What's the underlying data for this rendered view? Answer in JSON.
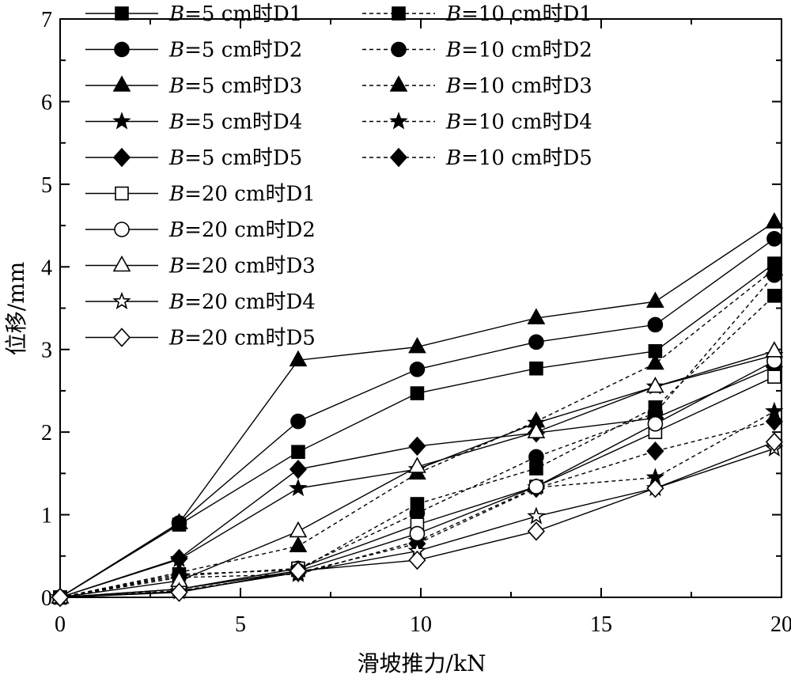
{
  "chart_data": {
    "type": "line",
    "title": "",
    "xlabel": "滑坡推力/kN",
    "ylabel": "位移/mm",
    "xlim": [
      0,
      20
    ],
    "ylim": [
      0,
      7
    ],
    "x_ticks": [
      "0",
      "5",
      "10",
      "15",
      "20"
    ],
    "y_ticks": [
      "0",
      "1",
      "2",
      "3",
      "4",
      "5",
      "6",
      "7"
    ],
    "grid": false,
    "legend_position": "top-left",
    "x": [
      0,
      3.3,
      6.6,
      9.9,
      13.2,
      16.5,
      19.8
    ],
    "series": [
      {
        "name": "B=5 cm时D1",
        "prefix": "B",
        "suffix": "=5 cm时D1",
        "marker": "square",
        "filled": true,
        "dashed": false,
        "values": [
          0,
          0.88,
          1.76,
          2.47,
          2.77,
          2.98,
          4.04
        ]
      },
      {
        "name": "B=5 cm时D2",
        "prefix": "B",
        "suffix": "=5 cm时D2",
        "marker": "circle",
        "filled": true,
        "dashed": false,
        "values": [
          0,
          0.9,
          2.13,
          2.76,
          3.09,
          3.3,
          4.34
        ]
      },
      {
        "name": "B=5 cm时D3",
        "prefix": "B",
        "suffix": "=5 cm时D3",
        "marker": "triangle",
        "filled": true,
        "dashed": false,
        "values": [
          0,
          0.9,
          2.87,
          3.03,
          3.38,
          3.58,
          4.54
        ]
      },
      {
        "name": "B=5 cm时D4",
        "prefix": "B",
        "suffix": "=5 cm时D4",
        "marker": "star",
        "filled": true,
        "dashed": false,
        "values": [
          0,
          0.46,
          1.32,
          1.55,
          2.11,
          2.55,
          2.93
        ]
      },
      {
        "name": "B=5 cm时D5",
        "prefix": "B",
        "suffix": "=5 cm时D5",
        "marker": "diamond",
        "filled": true,
        "dashed": false,
        "values": [
          0,
          0.47,
          1.55,
          1.83,
          1.99,
          2.17,
          2.79
        ]
      },
      {
        "name": "B=10 cm时D1",
        "prefix": "B",
        "suffix": "=10 cm时D1",
        "marker": "square",
        "filled": true,
        "dashed": true,
        "values": [
          0,
          0.28,
          0.33,
          1.13,
          1.56,
          2.3,
          3.65
        ]
      },
      {
        "name": "B=10 cm时D2",
        "prefix": "B",
        "suffix": "=10 cm时D2",
        "marker": "circle",
        "filled": true,
        "dashed": true,
        "values": [
          0,
          0.26,
          0.35,
          1.02,
          1.7,
          2.23,
          3.9
        ]
      },
      {
        "name": "B=10 cm时D3",
        "prefix": "B",
        "suffix": "=10 cm时D3",
        "marker": "triangle",
        "filled": true,
        "dashed": true,
        "values": [
          0,
          0.3,
          0.62,
          1.5,
          2.13,
          2.83,
          3.97
        ]
      },
      {
        "name": "B=10 cm时D4",
        "prefix": "B",
        "suffix": "=10 cm时D4",
        "marker": "star",
        "filled": true,
        "dashed": true,
        "values": [
          0,
          0.24,
          0.28,
          0.68,
          1.33,
          1.45,
          2.25
        ]
      },
      {
        "name": "B=10 cm时D5",
        "prefix": "B",
        "suffix": "=10 cm时D5",
        "marker": "diamond",
        "filled": true,
        "dashed": true,
        "values": [
          0,
          0.08,
          0.3,
          0.65,
          1.32,
          1.77,
          2.13
        ]
      },
      {
        "name": "B=20 cm时D1",
        "prefix": "B",
        "suffix": "=20 cm时D1",
        "marker": "square",
        "filled": false,
        "dashed": false,
        "values": [
          0,
          0.1,
          0.35,
          0.88,
          1.34,
          2.0,
          2.67
        ]
      },
      {
        "name": "B=20 cm时D2",
        "prefix": "B",
        "suffix": "=20 cm时D2",
        "marker": "circle",
        "filled": false,
        "dashed": false,
        "values": [
          0,
          0.1,
          0.32,
          0.77,
          1.34,
          2.1,
          2.86
        ]
      },
      {
        "name": "B=20 cm时D3",
        "prefix": "B",
        "suffix": "=20 cm时D3",
        "marker": "triangle",
        "filled": false,
        "dashed": false,
        "values": [
          0,
          0.2,
          0.8,
          1.58,
          2.0,
          2.55,
          2.98
        ]
      },
      {
        "name": "B=20 cm时D4",
        "prefix": "B",
        "suffix": "=20 cm时D4",
        "marker": "star",
        "filled": false,
        "dashed": false,
        "values": [
          0,
          0.07,
          0.3,
          0.56,
          0.98,
          1.32,
          1.8
        ]
      },
      {
        "name": "B=20 cm时D5",
        "prefix": "B",
        "suffix": "=20 cm时D5",
        "marker": "diamond",
        "filled": false,
        "dashed": false,
        "values": [
          0,
          0.06,
          0.32,
          0.45,
          0.8,
          1.32,
          1.88
        ]
      }
    ]
  }
}
